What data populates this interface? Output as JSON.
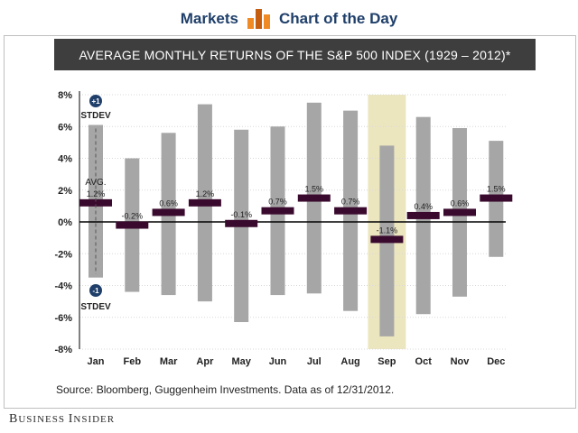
{
  "header": {
    "brand": "Markets",
    "section": "Chart of the Day"
  },
  "title": "AVERAGE MONTHLY RETURNS OF THE S&P 500 INDEX (1929 – 2012)*",
  "source": "Source: Bloomberg, Guggenheim Investments. Data as of 12/31/2012.",
  "footer": {
    "publisher_big_b": "B",
    "publisher_usiness": "USINESS ",
    "publisher_big_i": "I",
    "publisher_nsider": "NSIDER"
  },
  "colors": {
    "range_bar": "#a6a6a6",
    "avg_marker": "#3a0a2e",
    "highlight": "#ece6bf",
    "axis": "#000000",
    "gridline": "#d9d9d9",
    "brand_text": "#1f3f6a",
    "logo_orange": "#f08a24",
    "logo_dark_orange": "#c45d10",
    "stdev_badge": "#1f3f6a"
  },
  "annotations": {
    "plus_badge": "+1",
    "plus_label": "STDEV",
    "minus_badge": "-1",
    "minus_label": "STDEV",
    "avg_label": "AVG."
  },
  "chart_data": {
    "type": "bar",
    "title": "AVERAGE MONTHLY RETURNS OF THE S&P 500 INDEX (1929 – 2012)*",
    "xlabel": "",
    "ylabel": "",
    "ylim": [
      -8,
      8
    ],
    "yticks": [
      8,
      6,
      4,
      2,
      0,
      -2,
      -4,
      -6,
      -8
    ],
    "ytick_labels": [
      "8%",
      "6%",
      "4%",
      "2%",
      "0%",
      "-2%",
      "-4%",
      "-6%",
      "-8%"
    ],
    "categories": [
      "Jan",
      "Feb",
      "Mar",
      "Apr",
      "May",
      "Jun",
      "Jul",
      "Aug",
      "Sep",
      "Oct",
      "Nov",
      "Dec"
    ],
    "series": [
      {
        "name": "AVG.",
        "values": [
          1.2,
          -0.2,
          0.6,
          1.2,
          -0.1,
          0.7,
          1.5,
          0.7,
          -1.1,
          0.4,
          0.6,
          1.5
        ]
      },
      {
        "name": "+1 STDEV",
        "values": [
          6.1,
          4.0,
          5.6,
          7.4,
          5.8,
          6.0,
          7.5,
          7.0,
          4.8,
          6.6,
          5.9,
          5.1
        ]
      },
      {
        "name": "-1 STDEV",
        "values": [
          -3.5,
          -4.4,
          -4.6,
          -5.0,
          -6.3,
          -4.6,
          -4.5,
          -5.6,
          -7.2,
          -5.8,
          -4.7,
          -2.2
        ]
      }
    ],
    "value_labels": [
      "1.2%",
      "-0.2%",
      "0.6%",
      "1.2%",
      "-0.1%",
      "0.7%",
      "1.5%",
      "0.7%",
      "-1.1%",
      "0.4%",
      "0.6%",
      "1.5%"
    ],
    "highlighted_category": "Sep",
    "grid": true
  }
}
